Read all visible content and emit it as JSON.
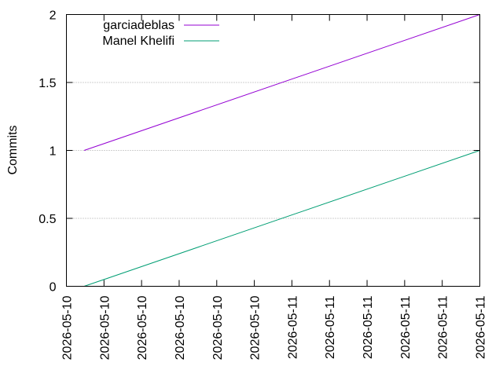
{
  "chart_data": {
    "type": "line",
    "title": "",
    "xlabel": "",
    "ylabel": "Commits",
    "ylim": [
      0,
      2
    ],
    "yticks": [
      0,
      0.5,
      1,
      1.5,
      2
    ],
    "ytick_labels": [
      "0",
      "0.5",
      "1",
      "1.5",
      "2"
    ],
    "xticks": [
      "2026-05-10",
      "2026-05-10",
      "2026-05-10",
      "2026-05-10",
      "2026-05-10",
      "2026-05-10",
      "2026-05-11",
      "2026-05-11",
      "2026-05-11",
      "2026-05-11",
      "2026-05-11",
      "2026-05-11"
    ],
    "grid": "horizontal",
    "legend_position": "top-left",
    "series": [
      {
        "name": "garciadeblas",
        "color": "#9400d3",
        "x": [
          0.043,
          1.0
        ],
        "y": [
          1,
          2
        ]
      },
      {
        "name": "Manel Khelifi",
        "color": "#009e73",
        "x": [
          0.043,
          1.0
        ],
        "y": [
          0,
          1
        ]
      }
    ]
  }
}
